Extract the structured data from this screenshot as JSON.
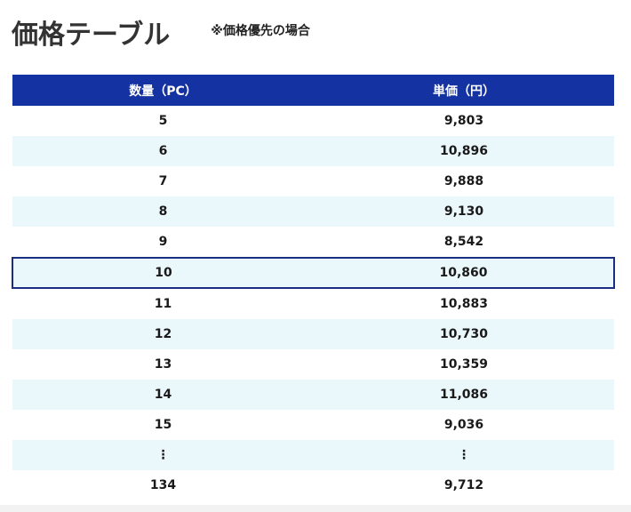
{
  "header": {
    "title": "価格テーブル",
    "note": "※価格優先の場合"
  },
  "table": {
    "columns": {
      "quantity": "数量（PC）",
      "unit_price": "単価（円）"
    },
    "rows": [
      {
        "qty": "5",
        "price": "9,803",
        "alt": false,
        "selected": false
      },
      {
        "qty": "6",
        "price": "10,896",
        "alt": true,
        "selected": false
      },
      {
        "qty": "7",
        "price": "9,888",
        "alt": false,
        "selected": false
      },
      {
        "qty": "8",
        "price": "9,130",
        "alt": true,
        "selected": false
      },
      {
        "qty": "9",
        "price": "8,542",
        "alt": false,
        "selected": false
      },
      {
        "qty": "10",
        "price": "10,860",
        "alt": true,
        "selected": true
      },
      {
        "qty": "11",
        "price": "10,883",
        "alt": false,
        "selected": false
      },
      {
        "qty": "12",
        "price": "10,730",
        "alt": true,
        "selected": false
      },
      {
        "qty": "13",
        "price": "10,359",
        "alt": false,
        "selected": false
      },
      {
        "qty": "14",
        "price": "11,086",
        "alt": true,
        "selected": false
      },
      {
        "qty": "15",
        "price": "9,036",
        "alt": false,
        "selected": false
      },
      {
        "qty": "⋮",
        "price": "⋮",
        "alt": true,
        "selected": false
      },
      {
        "qty": "134",
        "price": "9,712",
        "alt": false,
        "selected": false
      }
    ]
  },
  "colors": {
    "header_bg": "#1432a2",
    "alt_row_bg": "#eaf7fb",
    "selected_border": "#1a2f82"
  }
}
